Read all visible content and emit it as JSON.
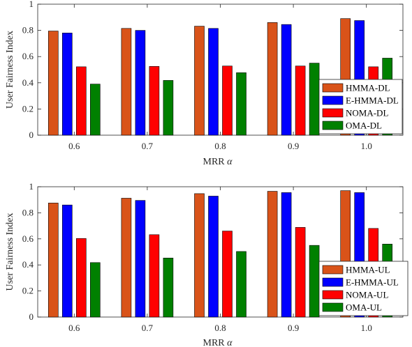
{
  "chart_data": [
    {
      "type": "bar",
      "categories": [
        "0.6",
        "0.7",
        "0.8",
        "0.9",
        "1.0"
      ],
      "xlabel": "MRR",
      "xlabel_symbol": "α",
      "ylabel": "User Fairness Index",
      "ylim": [
        0,
        1
      ],
      "yticks": [
        "0",
        "0.2",
        "0.4",
        "0.6",
        "0.8",
        "1"
      ],
      "grid": false,
      "legend_position": "bottom-right",
      "series": [
        {
          "name": "HMMA-DL",
          "color": "#D95319",
          "values": [
            0.795,
            0.815,
            0.832,
            0.86,
            0.89
          ]
        },
        {
          "name": "E-HMMA-DL",
          "color": "#0000FF",
          "values": [
            0.78,
            0.8,
            0.815,
            0.845,
            0.875
          ]
        },
        {
          "name": "NOMA-DL",
          "color": "#FF0000",
          "values": [
            0.522,
            0.525,
            0.528,
            0.528,
            0.522
          ]
        },
        {
          "name": "OMA-DL",
          "color": "#008000",
          "values": [
            0.39,
            0.418,
            0.477,
            0.55,
            0.588
          ]
        }
      ]
    },
    {
      "type": "bar",
      "categories": [
        "0.6",
        "0.7",
        "0.8",
        "0.9",
        "1.0"
      ],
      "xlabel": "MRR",
      "xlabel_symbol": "α",
      "ylabel": "User Fairness Index",
      "ylim": [
        0,
        1
      ],
      "yticks": [
        "0",
        "0.2",
        "0.4",
        "0.6",
        "0.8",
        "1"
      ],
      "grid": false,
      "legend_position": "bottom-right",
      "series": [
        {
          "name": "HMMA-UL",
          "color": "#D95319",
          "values": [
            0.875,
            0.912,
            0.947,
            0.965,
            0.97
          ]
        },
        {
          "name": "E-HMMA-UL",
          "color": "#0000FF",
          "values": [
            0.86,
            0.895,
            0.928,
            0.955,
            0.955
          ]
        },
        {
          "name": "NOMA-UL",
          "color": "#FF0000",
          "values": [
            0.603,
            0.632,
            0.66,
            0.688,
            0.68
          ]
        },
        {
          "name": "OMA-UL",
          "color": "#008000",
          "values": [
            0.418,
            0.453,
            0.503,
            0.55,
            0.56
          ]
        }
      ]
    }
  ]
}
